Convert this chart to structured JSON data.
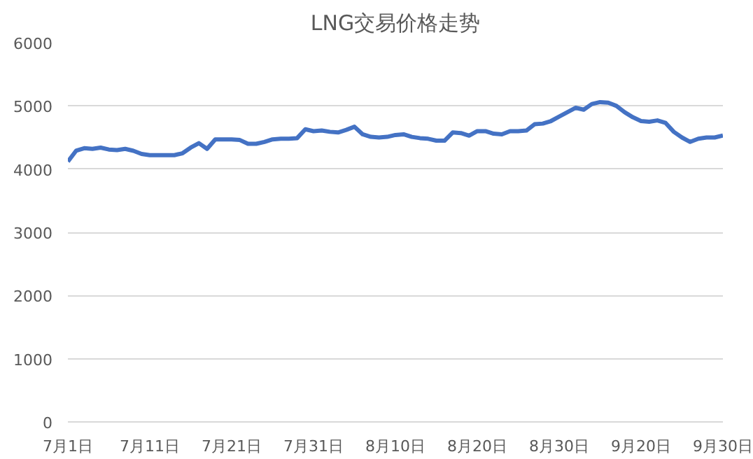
{
  "chart_data": {
    "type": "line",
    "title": "LNG交易价格走势",
    "categories": [
      "7月1日",
      null,
      null,
      null,
      null,
      null,
      null,
      null,
      null,
      null,
      "7月11日",
      null,
      null,
      null,
      null,
      null,
      null,
      null,
      null,
      null,
      "7月21日",
      null,
      null,
      null,
      null,
      null,
      null,
      null,
      null,
      null,
      "7月31日",
      null,
      null,
      null,
      null,
      null,
      null,
      null,
      null,
      null,
      "8月10日",
      null,
      null,
      null,
      null,
      null,
      null,
      null,
      null,
      null,
      "8月20日",
      null,
      null,
      null,
      null,
      null,
      null,
      null,
      null,
      null,
      "8月30日",
      null,
      null,
      null,
      null,
      null,
      null,
      null,
      null,
      null,
      "9月20日",
      null,
      null,
      null,
      null,
      null,
      null,
      null,
      null,
      null,
      "9月30日"
    ],
    "series": [
      {
        "color": "#4472c4",
        "values": [
          4120,
          4290,
          4330,
          4320,
          4340,
          4310,
          4300,
          4320,
          4290,
          4240,
          4220,
          4220,
          4220,
          4220,
          4250,
          4340,
          4410,
          4320,
          4470,
          4470,
          4470,
          4460,
          4400,
          4400,
          4430,
          4470,
          4480,
          4480,
          4490,
          4630,
          4600,
          4610,
          4590,
          4580,
          4620,
          4670,
          4550,
          4510,
          4500,
          4510,
          4540,
          4550,
          4510,
          4490,
          4480,
          4450,
          4450,
          4580,
          4570,
          4530,
          4600,
          4600,
          4560,
          4550,
          4600,
          4600,
          4610,
          4710,
          4720,
          4760,
          4830,
          4900,
          4970,
          4940,
          5030,
          5060,
          5050,
          5000,
          4900,
          4820,
          4760,
          4750,
          4770,
          4730,
          4590,
          4500,
          4430,
          4480,
          4500,
          4500,
          4530
        ]
      }
    ],
    "ylim": [
      0,
      6000
    ],
    "yticks": [
      0,
      1000,
      2000,
      3000,
      4000,
      5000,
      6000
    ],
    "grid": "y",
    "marker": "none",
    "line_style": "solid"
  }
}
